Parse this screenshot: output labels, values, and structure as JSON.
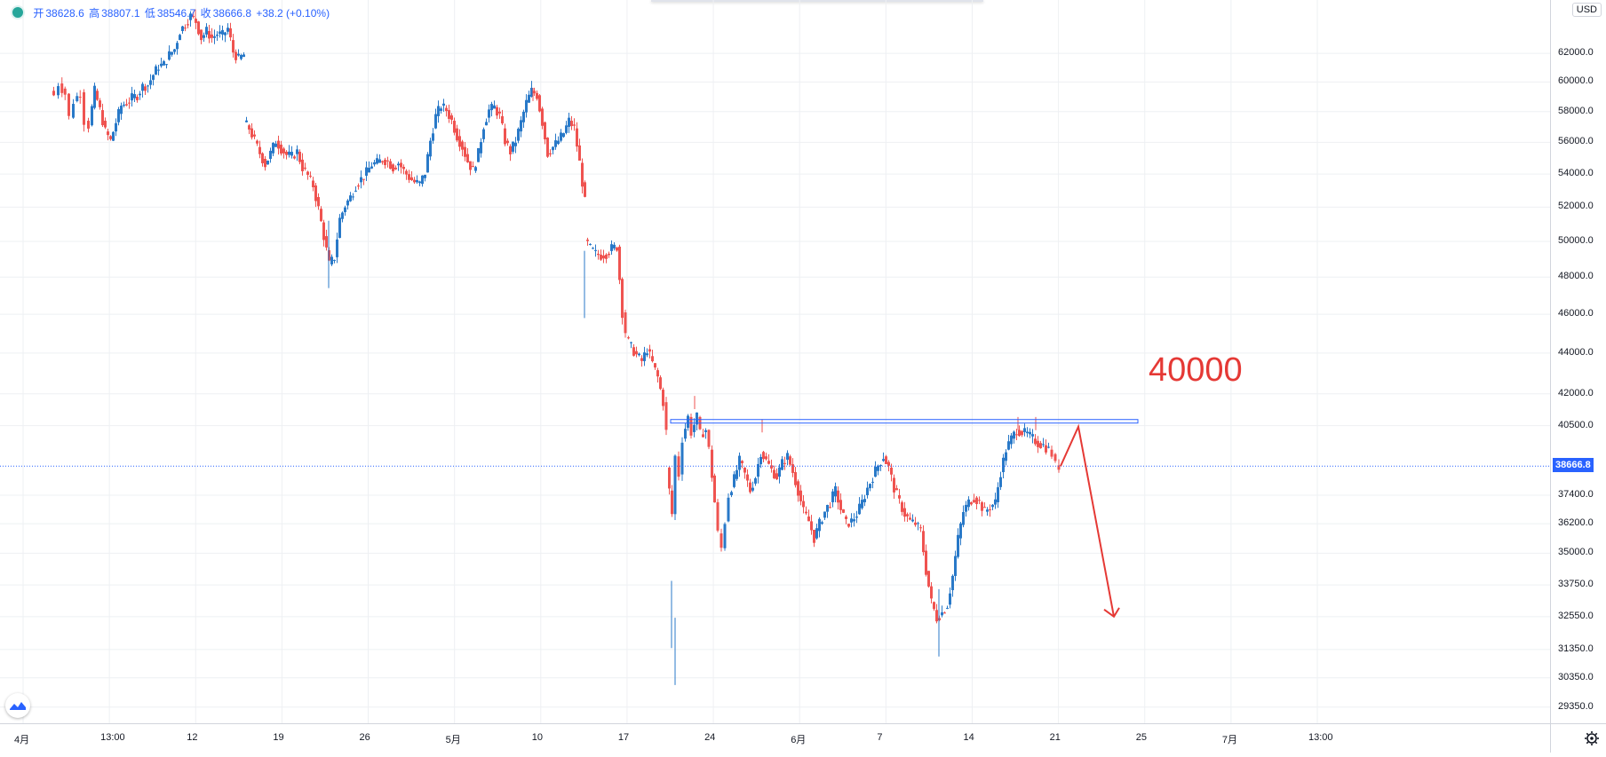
{
  "header": {
    "open_label": "开",
    "open": "38628.6",
    "high_label": "高",
    "high": "38807.1",
    "low_label": "低",
    "low": "38546.7",
    "close_label": "收",
    "close": "38666.8",
    "change": "+38.2 (+0.10%)"
  },
  "currency": "USD",
  "current_price": "38666.8",
  "annotation": {
    "text": "40000"
  },
  "colors": {
    "up": "#2979c8",
    "down": "#ef5350",
    "line": "#2962ff",
    "arrow": "#e53935",
    "grid": "#eef0f3"
  },
  "icons": {
    "logo": "tradingview-logo-icon",
    "settings": "gear-icon"
  },
  "chart_data": {
    "type": "candlestick",
    "y_axis": {
      "scale": "log",
      "range": [
        28900,
        65500
      ],
      "tick_labels": [
        "62000.0",
        "60000.0",
        "58000.0",
        "56000.0",
        "54000.0",
        "52000.0",
        "50000.0",
        "48000.0",
        "46000.0",
        "44000.0",
        "42000.0",
        "40500.0",
        "37400.0",
        "36200.0",
        "35000.0",
        "33750.0",
        "32550.0",
        "31350.0",
        "30350.0",
        "29350.0"
      ]
    },
    "x_axis": {
      "tick_labels": [
        "4月",
        "13:00",
        "12",
        "19",
        "26",
        "5月",
        "10",
        "17",
        "24",
        "6月",
        "7",
        "14",
        "21",
        "25",
        "7月",
        "13:00"
      ]
    },
    "trendline_segments": [
      [
        [
          58,
          59400
        ],
        [
          63,
          59100
        ],
        [
          68,
          59900
        ],
        [
          75,
          59200
        ],
        [
          80,
          57600
        ],
        [
          85,
          58700
        ],
        [
          92,
          59300
        ],
        [
          97,
          57400
        ],
        [
          102,
          57100
        ],
        [
          108,
          59400
        ],
        [
          114,
          58100
        ],
        [
          120,
          56700
        ],
        [
          126,
          56100
        ],
        [
          132,
          57300
        ],
        [
          138,
          58400
        ],
        [
          144,
          58600
        ],
        [
          150,
          58900
        ],
        [
          156,
          59100
        ],
        [
          162,
          59700
        ],
        [
          168,
          59800
        ],
        [
          174,
          60500
        ],
        [
          180,
          61100
        ],
        [
          186,
          61200
        ],
        [
          192,
          61900
        ],
        [
          198,
          62300
        ],
        [
          204,
          63600
        ],
        [
          210,
          64100
        ],
        [
          216,
          64700
        ],
        [
          222,
          64300
        ],
        [
          228,
          63100
        ],
        [
          234,
          63600
        ],
        [
          240,
          63100
        ],
        [
          246,
          63400
        ],
        [
          252,
          63300
        ],
        [
          258,
          63800
        ],
        [
          264,
          62100
        ],
        [
          270,
          61600
        ],
        [
          276,
          61900
        ]
      ],
      [
        [
          276,
          57300
        ],
        [
          282,
          56900
        ],
        [
          288,
          56100
        ],
        [
          294,
          55300
        ],
        [
          300,
          54600
        ],
        [
          306,
          55300
        ],
        [
          312,
          56100
        ],
        [
          318,
          55600
        ],
        [
          324,
          55200
        ],
        [
          330,
          55100
        ],
        [
          336,
          55400
        ],
        [
          342,
          54400
        ],
        [
          348,
          53900
        ],
        [
          354,
          53300
        ],
        [
          360,
          51900
        ],
        [
          366,
          50300
        ],
        [
          372,
          48700
        ],
        [
          378,
          49100
        ],
        [
          384,
          51300
        ],
        [
          390,
          52100
        ],
        [
          396,
          52600
        ],
        [
          402,
          53300
        ],
        [
          408,
          53700
        ],
        [
          414,
          54100
        ],
        [
          420,
          54600
        ],
        [
          426,
          54700
        ],
        [
          432,
          54900
        ],
        [
          438,
          54800
        ],
        [
          444,
          54400
        ],
        [
          450,
          54700
        ],
        [
          456,
          54200
        ],
        [
          462,
          53800
        ],
        [
          468,
          53500
        ],
        [
          474,
          53400
        ],
        [
          480,
          54100
        ],
        [
          486,
          56100
        ],
        [
          492,
          57700
        ],
        [
          498,
          58400
        ],
        [
          504,
          58100
        ],
        [
          510,
          57400
        ],
        [
          516,
          56400
        ],
        [
          522,
          55700
        ],
        [
          528,
          54800
        ],
        [
          534,
          54200
        ],
        [
          540,
          55300
        ],
        [
          546,
          57100
        ],
        [
          552,
          58100
        ],
        [
          558,
          58300
        ],
        [
          564,
          57700
        ],
        [
          570,
          56100
        ],
        [
          576,
          55400
        ],
        [
          582,
          56100
        ],
        [
          588,
          57300
        ],
        [
          594,
          58600
        ],
        [
          600,
          59400
        ],
        [
          606,
          59100
        ],
        [
          612,
          57300
        ],
        [
          618,
          55300
        ],
        [
          624,
          55700
        ],
        [
          630,
          56100
        ],
        [
          636,
          56600
        ],
        [
          642,
          57400
        ],
        [
          648,
          56900
        ],
        [
          654,
          54700
        ],
        [
          660,
          52300
        ]
      ],
      [
        [
          660,
          50100
        ],
        [
          666,
          49600
        ],
        [
          672,
          49300
        ],
        [
          678,
          49200
        ],
        [
          684,
          49300
        ],
        [
          690,
          49600
        ],
        [
          696,
          49700
        ],
        [
          702,
          46100
        ],
        [
          706,
          45100
        ]
      ],
      [
        [
          706,
          44800
        ],
        [
          712,
          44300
        ],
        [
          718,
          43900
        ],
        [
          724,
          43600
        ],
        [
          730,
          44200
        ],
        [
          736,
          43500
        ],
        [
          742,
          42800
        ],
        [
          748,
          41600
        ],
        [
          752,
          40200
        ]
      ],
      [
        [
          752,
          38600
        ],
        [
          758,
          36600
        ],
        [
          762,
          39100
        ],
        [
          766,
          38300
        ],
        [
          770,
          39900
        ],
        [
          776,
          40900
        ],
        [
          780,
          40200
        ],
        [
          786,
          40900
        ],
        [
          790,
          40100
        ],
        [
          796,
          40300
        ],
        [
          800,
          39400
        ],
        [
          806,
          37100
        ],
        [
          810,
          35800
        ],
        [
          814,
          35200
        ],
        [
          818,
          36300
        ],
        [
          822,
          37400
        ],
        [
          828,
          38100
        ],
        [
          834,
          38900
        ],
        [
          840,
          38300
        ],
        [
          846,
          37600
        ],
        [
          852,
          38200
        ],
        [
          858,
          39300
        ],
        [
          864,
          38900
        ],
        [
          870,
          38500
        ],
        [
          876,
          38200
        ],
        [
          882,
          38800
        ],
        [
          888,
          39100
        ],
        [
          894,
          38400
        ],
        [
          900,
          37600
        ],
        [
          906,
          36700
        ],
        [
          912,
          36300
        ],
        [
          918,
          35600
        ],
        [
          924,
          36200
        ],
        [
          930,
          36700
        ],
        [
          936,
          37100
        ],
        [
          942,
          37600
        ],
        [
          948,
          36800
        ],
        [
          954,
          36200
        ],
        [
          960,
          36300
        ],
        [
          966,
          36600
        ],
        [
          972,
          37100
        ],
        [
          978,
          37700
        ],
        [
          984,
          38200
        ],
        [
          990,
          38700
        ],
        [
          996,
          39100
        ],
        [
          1002,
          38600
        ],
        [
          1008,
          37700
        ],
        [
          1014,
          37100
        ],
        [
          1020,
          36600
        ],
        [
          1026,
          36300
        ],
        [
          1032,
          36200
        ],
        [
          1038,
          35900
        ],
        [
          1044,
          34300
        ],
        [
          1050,
          33100
        ],
        [
          1056,
          32500
        ],
        [
          1062,
          32700
        ],
        [
          1068,
          33000
        ],
        [
          1074,
          34100
        ],
        [
          1080,
          35600
        ],
        [
          1086,
          36700
        ],
        [
          1092,
          37100
        ],
        [
          1098,
          37300
        ],
        [
          1104,
          37100
        ],
        [
          1110,
          36700
        ],
        [
          1116,
          36900
        ],
        [
          1122,
          37100
        ],
        [
          1128,
          38400
        ],
        [
          1134,
          39400
        ],
        [
          1140,
          39900
        ],
        [
          1146,
          40300
        ],
        [
          1152,
          40200
        ],
        [
          1158,
          40100
        ],
        [
          1164,
          39900
        ],
        [
          1170,
          39700
        ],
        [
          1176,
          39600
        ],
        [
          1182,
          39400
        ],
        [
          1186,
          39200
        ],
        [
          1190,
          38700
        ],
        [
          1194,
          38667
        ]
      ]
    ],
    "lows": [
      [
        760,
        30100
      ],
      [
        1057,
        31100
      ],
      [
        658,
        45800
      ],
      [
        370,
        47400
      ],
      [
        756,
        31400
      ]
    ],
    "highs": [
      [
        220,
        65200
      ],
      [
        600,
        59600
      ],
      [
        782,
        41900
      ],
      [
        858,
        40800
      ],
      [
        1146,
        40900
      ],
      [
        1166,
        40900
      ]
    ],
    "horizontal_line": {
      "price": 40700,
      "x_start": 755,
      "x_end": 1281
    },
    "projection_arrow": [
      [
        1194,
        38667
      ],
      [
        1214,
        40450
      ],
      [
        1254,
        32550
      ]
    ]
  }
}
